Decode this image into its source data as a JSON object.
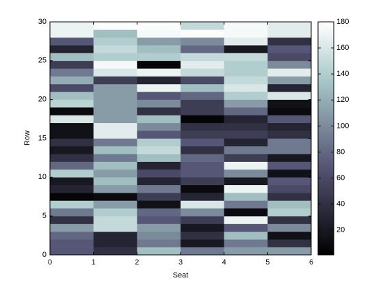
{
  "chart_data": {
    "type": "heatmap",
    "xlabel": "Seat",
    "ylabel": "Row",
    "x_edges": [
      0,
      1,
      2,
      3,
      4,
      5,
      6
    ],
    "y_edges": [
      0,
      1,
      2,
      3,
      4,
      5,
      6,
      7,
      8,
      9,
      10,
      11,
      12,
      13,
      14,
      15,
      16,
      17,
      18,
      19,
      20,
      21,
      22,
      23,
      24,
      25,
      26,
      27,
      28,
      29,
      30
    ],
    "values": [
      [
        70,
        40,
        130,
        90,
        110,
        110
      ],
      [
        70,
        30,
        90,
        20,
        90,
        40
      ],
      [
        80,
        30,
        100,
        40,
        130,
        15
      ],
      [
        110,
        150,
        110,
        20,
        70,
        100
      ],
      [
        40,
        150,
        70,
        50,
        170,
        40
      ],
      [
        90,
        140,
        80,
        100,
        10,
        140
      ],
      [
        140,
        110,
        15,
        160,
        90,
        130
      ],
      [
        5,
        10,
        50,
        30,
        130,
        40
      ],
      [
        30,
        110,
        90,
        10,
        170,
        60
      ],
      [
        20,
        130,
        30,
        50,
        20,
        70
      ],
      [
        140,
        110,
        60,
        70,
        100,
        15
      ],
      [
        80,
        130,
        30,
        70,
        170,
        70
      ],
      [
        40,
        90,
        130,
        80,
        50,
        20
      ],
      [
        20,
        130,
        150,
        40,
        90,
        90
      ],
      [
        40,
        90,
        140,
        70,
        30,
        90
      ],
      [
        15,
        165,
        70,
        50,
        50,
        40
      ],
      [
        15,
        165,
        100,
        40,
        40,
        30
      ],
      [
        160,
        110,
        130,
        5,
        30,
        70
      ],
      [
        10,
        110,
        40,
        50,
        80,
        10
      ],
      [
        145,
        110,
        100,
        50,
        110,
        15
      ],
      [
        130,
        110,
        70,
        80,
        140,
        160
      ],
      [
        60,
        110,
        170,
        130,
        160,
        30
      ],
      [
        120,
        50,
        30,
        60,
        150,
        110
      ],
      [
        90,
        160,
        170,
        150,
        140,
        165
      ],
      [
        50,
        175,
        5,
        165,
        140,
        100
      ],
      [
        130,
        140,
        140,
        150,
        150,
        60
      ],
      [
        30,
        150,
        130,
        80,
        20,
        70
      ],
      [
        70,
        140,
        110,
        100,
        165,
        40
      ],
      [
        170,
        130,
        175,
        178,
        175,
        165
      ],
      [
        170,
        178,
        178,
        150,
        175,
        165
      ]
    ],
    "colormap": "bone",
    "xlim": [
      0,
      6
    ],
    "ylim": [
      0,
      30
    ],
    "xticks": [
      0,
      1,
      2,
      3,
      4,
      5,
      6
    ],
    "yticks": [
      0,
      5,
      10,
      15,
      20,
      25,
      30
    ],
    "clim": [
      1,
      180
    ],
    "cticks": [
      20,
      40,
      60,
      80,
      100,
      120,
      140,
      160,
      180
    ]
  }
}
